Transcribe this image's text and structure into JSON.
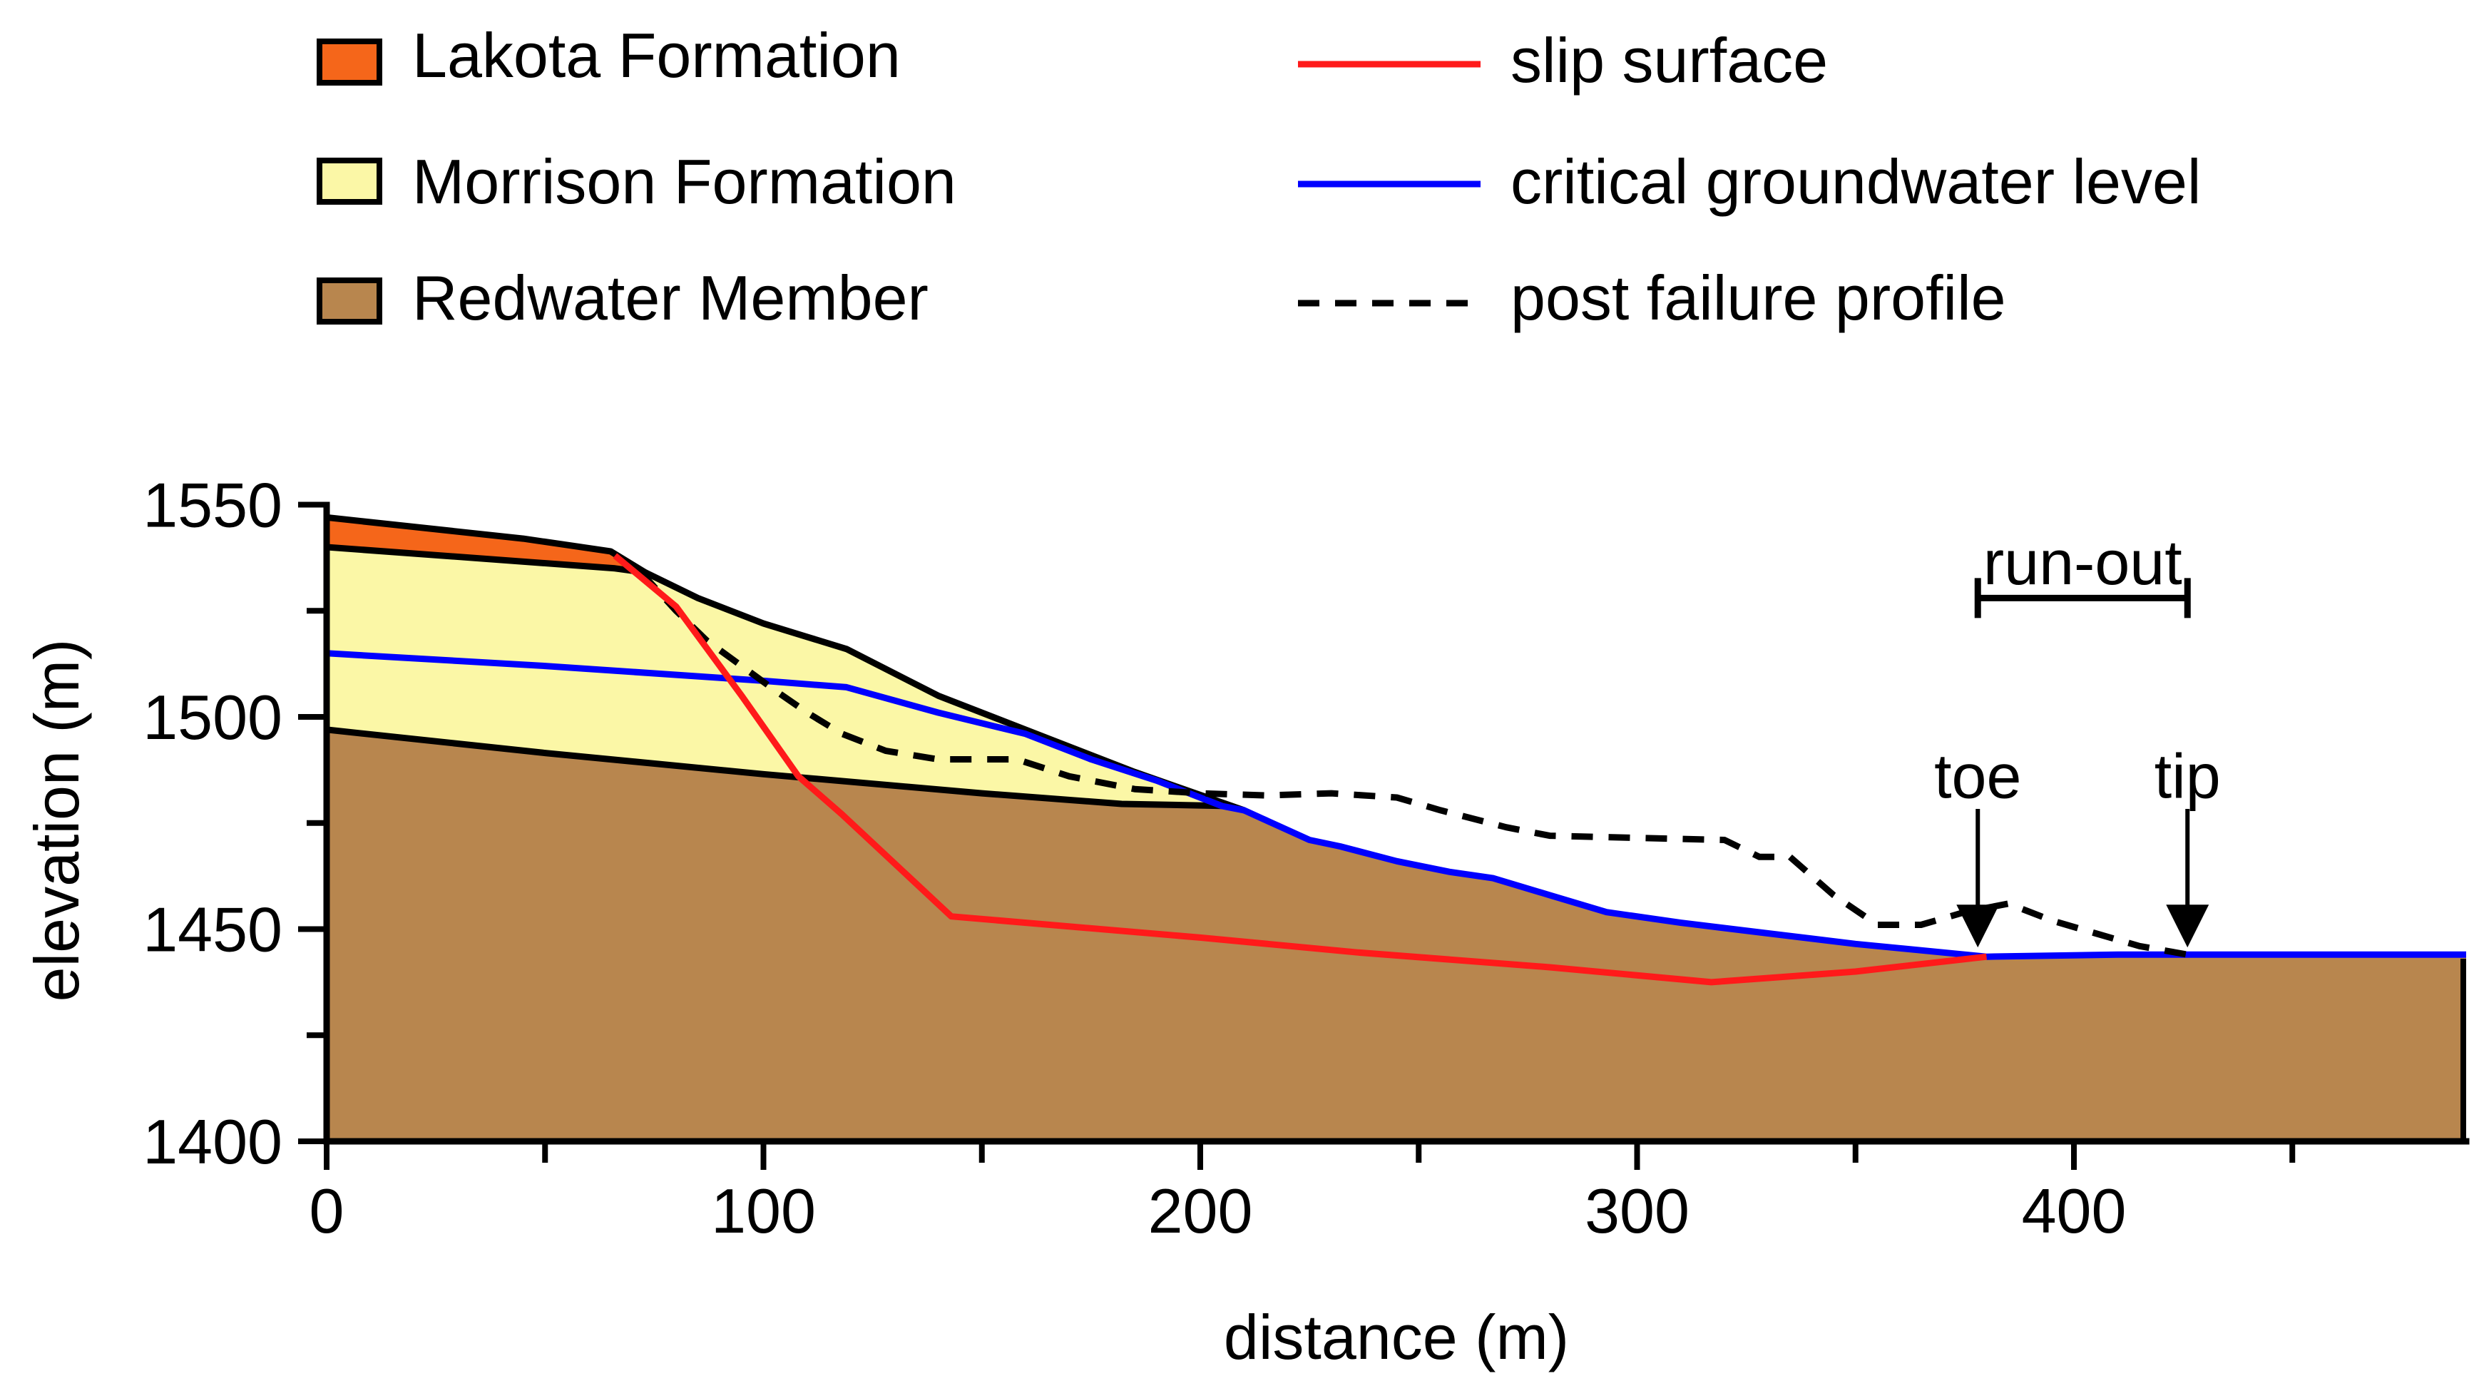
{
  "chart_data": {
    "type": "area",
    "title": "",
    "xlabel": "distance (m)",
    "ylabel": "elevation (m)",
    "xlim": [
      0,
      490
    ],
    "ylim": [
      1400,
      1550
    ],
    "x_ticks": [
      0,
      100,
      200,
      300,
      400
    ],
    "x_tick_labels": [
      "0",
      "100",
      "200",
      "300",
      "400"
    ],
    "x_minor_ticks": [
      50,
      150,
      250,
      350,
      450
    ],
    "y_ticks": [
      1400,
      1450,
      1500,
      1550
    ],
    "y_tick_labels": [
      "1400",
      "1450",
      "1500",
      "1550"
    ],
    "y_minor_ticks": [
      1425,
      1475,
      1525
    ],
    "layers": [
      {
        "name": "Redwater Member",
        "color": "#b8864e",
        "polygon": [
          [
            0,
            1400
          ],
          [
            0,
            1497
          ],
          [
            50,
            1491.5
          ],
          [
            100,
            1486.5
          ],
          [
            150,
            1482
          ],
          [
            182,
            1479.5
          ],
          [
            205,
            1479
          ],
          [
            210,
            1478
          ],
          [
            225,
            1471
          ],
          [
            232,
            1469.5
          ],
          [
            245,
            1466
          ],
          [
            257,
            1463.5
          ],
          [
            267,
            1462
          ],
          [
            280,
            1458
          ],
          [
            293,
            1454
          ],
          [
            310,
            1451.5
          ],
          [
            330,
            1449
          ],
          [
            350,
            1446.5
          ],
          [
            380,
            1443.5
          ],
          [
            410,
            1444
          ],
          [
            490,
            1444
          ],
          [
            490,
            1400
          ]
        ]
      },
      {
        "name": "Morrison Formation",
        "color": "#fbf7a6",
        "polygon": [
          [
            0,
            1540
          ],
          [
            66,
            1535
          ],
          [
            73,
            1534
          ],
          [
            85,
            1528
          ],
          [
            100,
            1522
          ],
          [
            119,
            1516
          ],
          [
            140,
            1505
          ],
          [
            165,
            1495
          ],
          [
            185,
            1487
          ],
          [
            205,
            1479
          ],
          [
            182,
            1479.5
          ],
          [
            150,
            1482
          ],
          [
            100,
            1486.5
          ],
          [
            50,
            1491.5
          ],
          [
            0,
            1497
          ]
        ]
      },
      {
        "name": "Lakota Formation",
        "color": "#f5661a",
        "polygon": [
          [
            0,
            1547
          ],
          [
            45,
            1542
          ],
          [
            65,
            1539
          ],
          [
            73,
            1534
          ],
          [
            66,
            1535
          ],
          [
            0,
            1540
          ]
        ]
      }
    ],
    "boundaries": [
      {
        "name": "ground surface",
        "color": "#000000",
        "points": [
          [
            0,
            1547
          ],
          [
            45,
            1542
          ],
          [
            65,
            1539
          ],
          [
            73,
            1534
          ],
          [
            85,
            1528
          ],
          [
            100,
            1522
          ],
          [
            119,
            1516
          ],
          [
            140,
            1505
          ],
          [
            165,
            1495
          ],
          [
            185,
            1487
          ],
          [
            210,
            1478
          ]
        ]
      },
      {
        "name": "Lakota base",
        "color": "#000000",
        "points": [
          [
            0,
            1540
          ],
          [
            66,
            1535
          ],
          [
            73,
            1534
          ]
        ]
      },
      {
        "name": "Morrison base",
        "color": "#000000",
        "points": [
          [
            0,
            1497
          ],
          [
            50,
            1491.5
          ],
          [
            100,
            1486.5
          ],
          [
            150,
            1482
          ],
          [
            182,
            1479.5
          ],
          [
            207,
            1479
          ]
        ]
      }
    ],
    "series": [
      {
        "name": "slip surface",
        "color": "#ff1a1a",
        "style": "solid",
        "points": [
          [
            66,
            1538
          ],
          [
            80,
            1526
          ],
          [
            95,
            1505
          ],
          [
            108,
            1486
          ],
          [
            118,
            1477
          ],
          [
            143,
            1453
          ],
          [
            200,
            1448
          ],
          [
            236,
            1444.5
          ],
          [
            280,
            1441
          ],
          [
            317,
            1437.5
          ],
          [
            350,
            1440
          ],
          [
            380,
            1443.5
          ]
        ]
      },
      {
        "name": "critical groundwater level",
        "color": "#0000ff",
        "style": "solid",
        "points": [
          [
            0,
            1515
          ],
          [
            50,
            1512
          ],
          [
            100,
            1508.5
          ],
          [
            119,
            1507
          ],
          [
            140,
            1501
          ],
          [
            160,
            1496
          ],
          [
            175,
            1490
          ],
          [
            190,
            1485
          ],
          [
            205,
            1479
          ],
          [
            210,
            1478
          ],
          [
            225,
            1471
          ],
          [
            232,
            1469.5
          ],
          [
            245,
            1466
          ],
          [
            257,
            1463.5
          ],
          [
            267,
            1462
          ],
          [
            280,
            1458
          ],
          [
            293,
            1454
          ],
          [
            310,
            1451.5
          ],
          [
            330,
            1449
          ],
          [
            350,
            1446.5
          ],
          [
            380,
            1443.5
          ],
          [
            410,
            1444
          ],
          [
            490,
            1444
          ]
        ]
      },
      {
        "name": "post failure profile",
        "color": "#000000",
        "style": "dashed",
        "points": [
          [
            72,
            1534
          ],
          [
            80,
            1525
          ],
          [
            87,
            1518
          ],
          [
            95,
            1512
          ],
          [
            103,
            1506
          ],
          [
            110,
            1501
          ],
          [
            118,
            1496
          ],
          [
            128,
            1492
          ],
          [
            140,
            1490
          ],
          [
            150,
            1490
          ],
          [
            158,
            1490
          ],
          [
            170,
            1486
          ],
          [
            185,
            1483
          ],
          [
            200,
            1482
          ],
          [
            215,
            1481.5
          ],
          [
            230,
            1482
          ],
          [
            245,
            1481
          ],
          [
            255,
            1478
          ],
          [
            270,
            1474
          ],
          [
            280,
            1472
          ],
          [
            300,
            1471.5
          ],
          [
            320,
            1471
          ],
          [
            328,
            1467
          ],
          [
            335,
            1467
          ],
          [
            345,
            1458
          ],
          [
            355,
            1451
          ],
          [
            365,
            1451
          ],
          [
            375,
            1454
          ],
          [
            385,
            1456
          ],
          [
            395,
            1452
          ],
          [
            405,
            1449
          ],
          [
            415,
            1446
          ],
          [
            426,
            1444
          ]
        ]
      }
    ],
    "annotations": [
      {
        "text": "run-out",
        "x_range": [
          378,
          426
        ],
        "y": 1536
      },
      {
        "text": "toe",
        "x": 378,
        "y_label": 1486,
        "y_arrow_top": 1480,
        "y_arrow_tip": 1444
      },
      {
        "text": "tip",
        "x": 426,
        "y_label": 1486,
        "y_arrow_top": 1480,
        "y_arrow_tip": 1444
      }
    ],
    "legend": {
      "placement": "top",
      "entries": [
        {
          "label": "Lakota Formation",
          "kind": "patch",
          "color": "#f5661a"
        },
        {
          "label": "Morrison Formation",
          "kind": "patch",
          "color": "#fbf7a6"
        },
        {
          "label": "Redwater Member",
          "kind": "patch",
          "color": "#b8864e"
        },
        {
          "label": "slip surface",
          "kind": "line",
          "color": "#ff1a1a",
          "style": "solid"
        },
        {
          "label": "critical groundwater level",
          "kind": "line",
          "color": "#0000ff",
          "style": "solid"
        },
        {
          "label": "post failure profile",
          "kind": "line",
          "color": "#000000",
          "style": "dashed"
        }
      ]
    },
    "grid": false
  }
}
